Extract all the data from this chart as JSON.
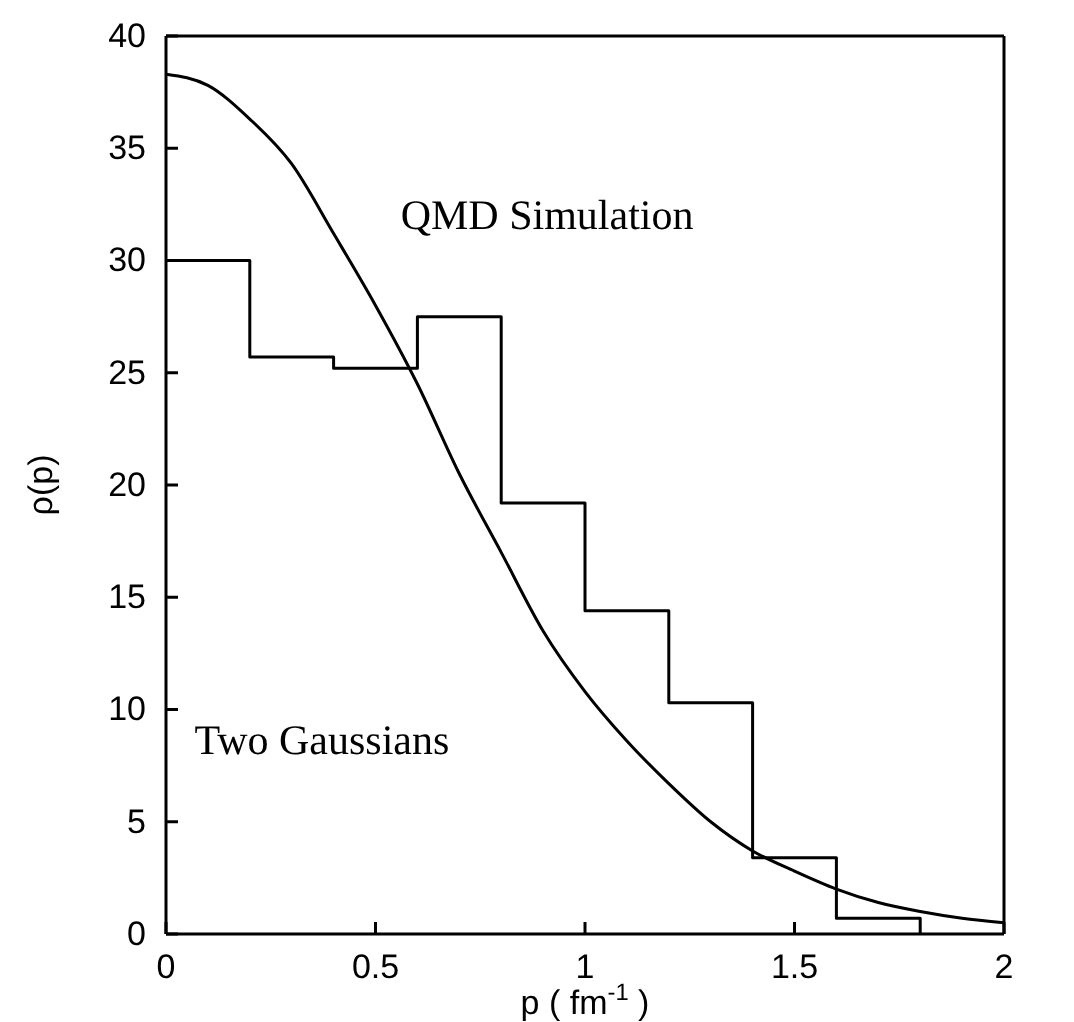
{
  "chart_data": {
    "type": "line",
    "xlabel": "p ( fm$^{-1}$ )",
    "ylabel": "ρ(p)",
    "series": [
      {
        "type": "step",
        "color": "#000000",
        "x": [
          0,
          0.2,
          0.4,
          0.6,
          0.8,
          1.0,
          1.2,
          1.4,
          1.6,
          1.8
        ],
        "values": [
          30,
          25.7,
          25.2,
          27.5,
          19.2,
          14.4,
          10.3,
          3.4,
          0.7,
          0
        ]
      },
      {
        "color": "#000000",
        "x": [
          0,
          0.1,
          0.2,
          0.3,
          0.4,
          0.5,
          0.6,
          0.7,
          0.8,
          0.9,
          1.0,
          1.1,
          1.2,
          1.3,
          1.4,
          1.5,
          1.6,
          1.7,
          1.8,
          1.9,
          2.0
        ],
        "values": [
          38.3,
          37.8,
          36.3,
          34.3,
          31.2,
          28,
          24.5,
          20.5,
          17,
          13.5,
          10.8,
          8.6,
          6.7,
          5.0,
          3.7,
          2.8,
          2.0,
          1.4,
          1.0,
          0.7,
          0.5
        ]
      }
    ],
    "annotations": [
      "QMD Simulation",
      "Two Gaussians"
    ],
    "xlim": [
      0,
      2
    ],
    "xticks": [
      0,
      0.5,
      1,
      1.5,
      2
    ],
    "ylim": [
      0,
      40
    ],
    "yticks": [
      0,
      5,
      10,
      15,
      20,
      25,
      30,
      35,
      40
    ],
    "grid": false
  }
}
